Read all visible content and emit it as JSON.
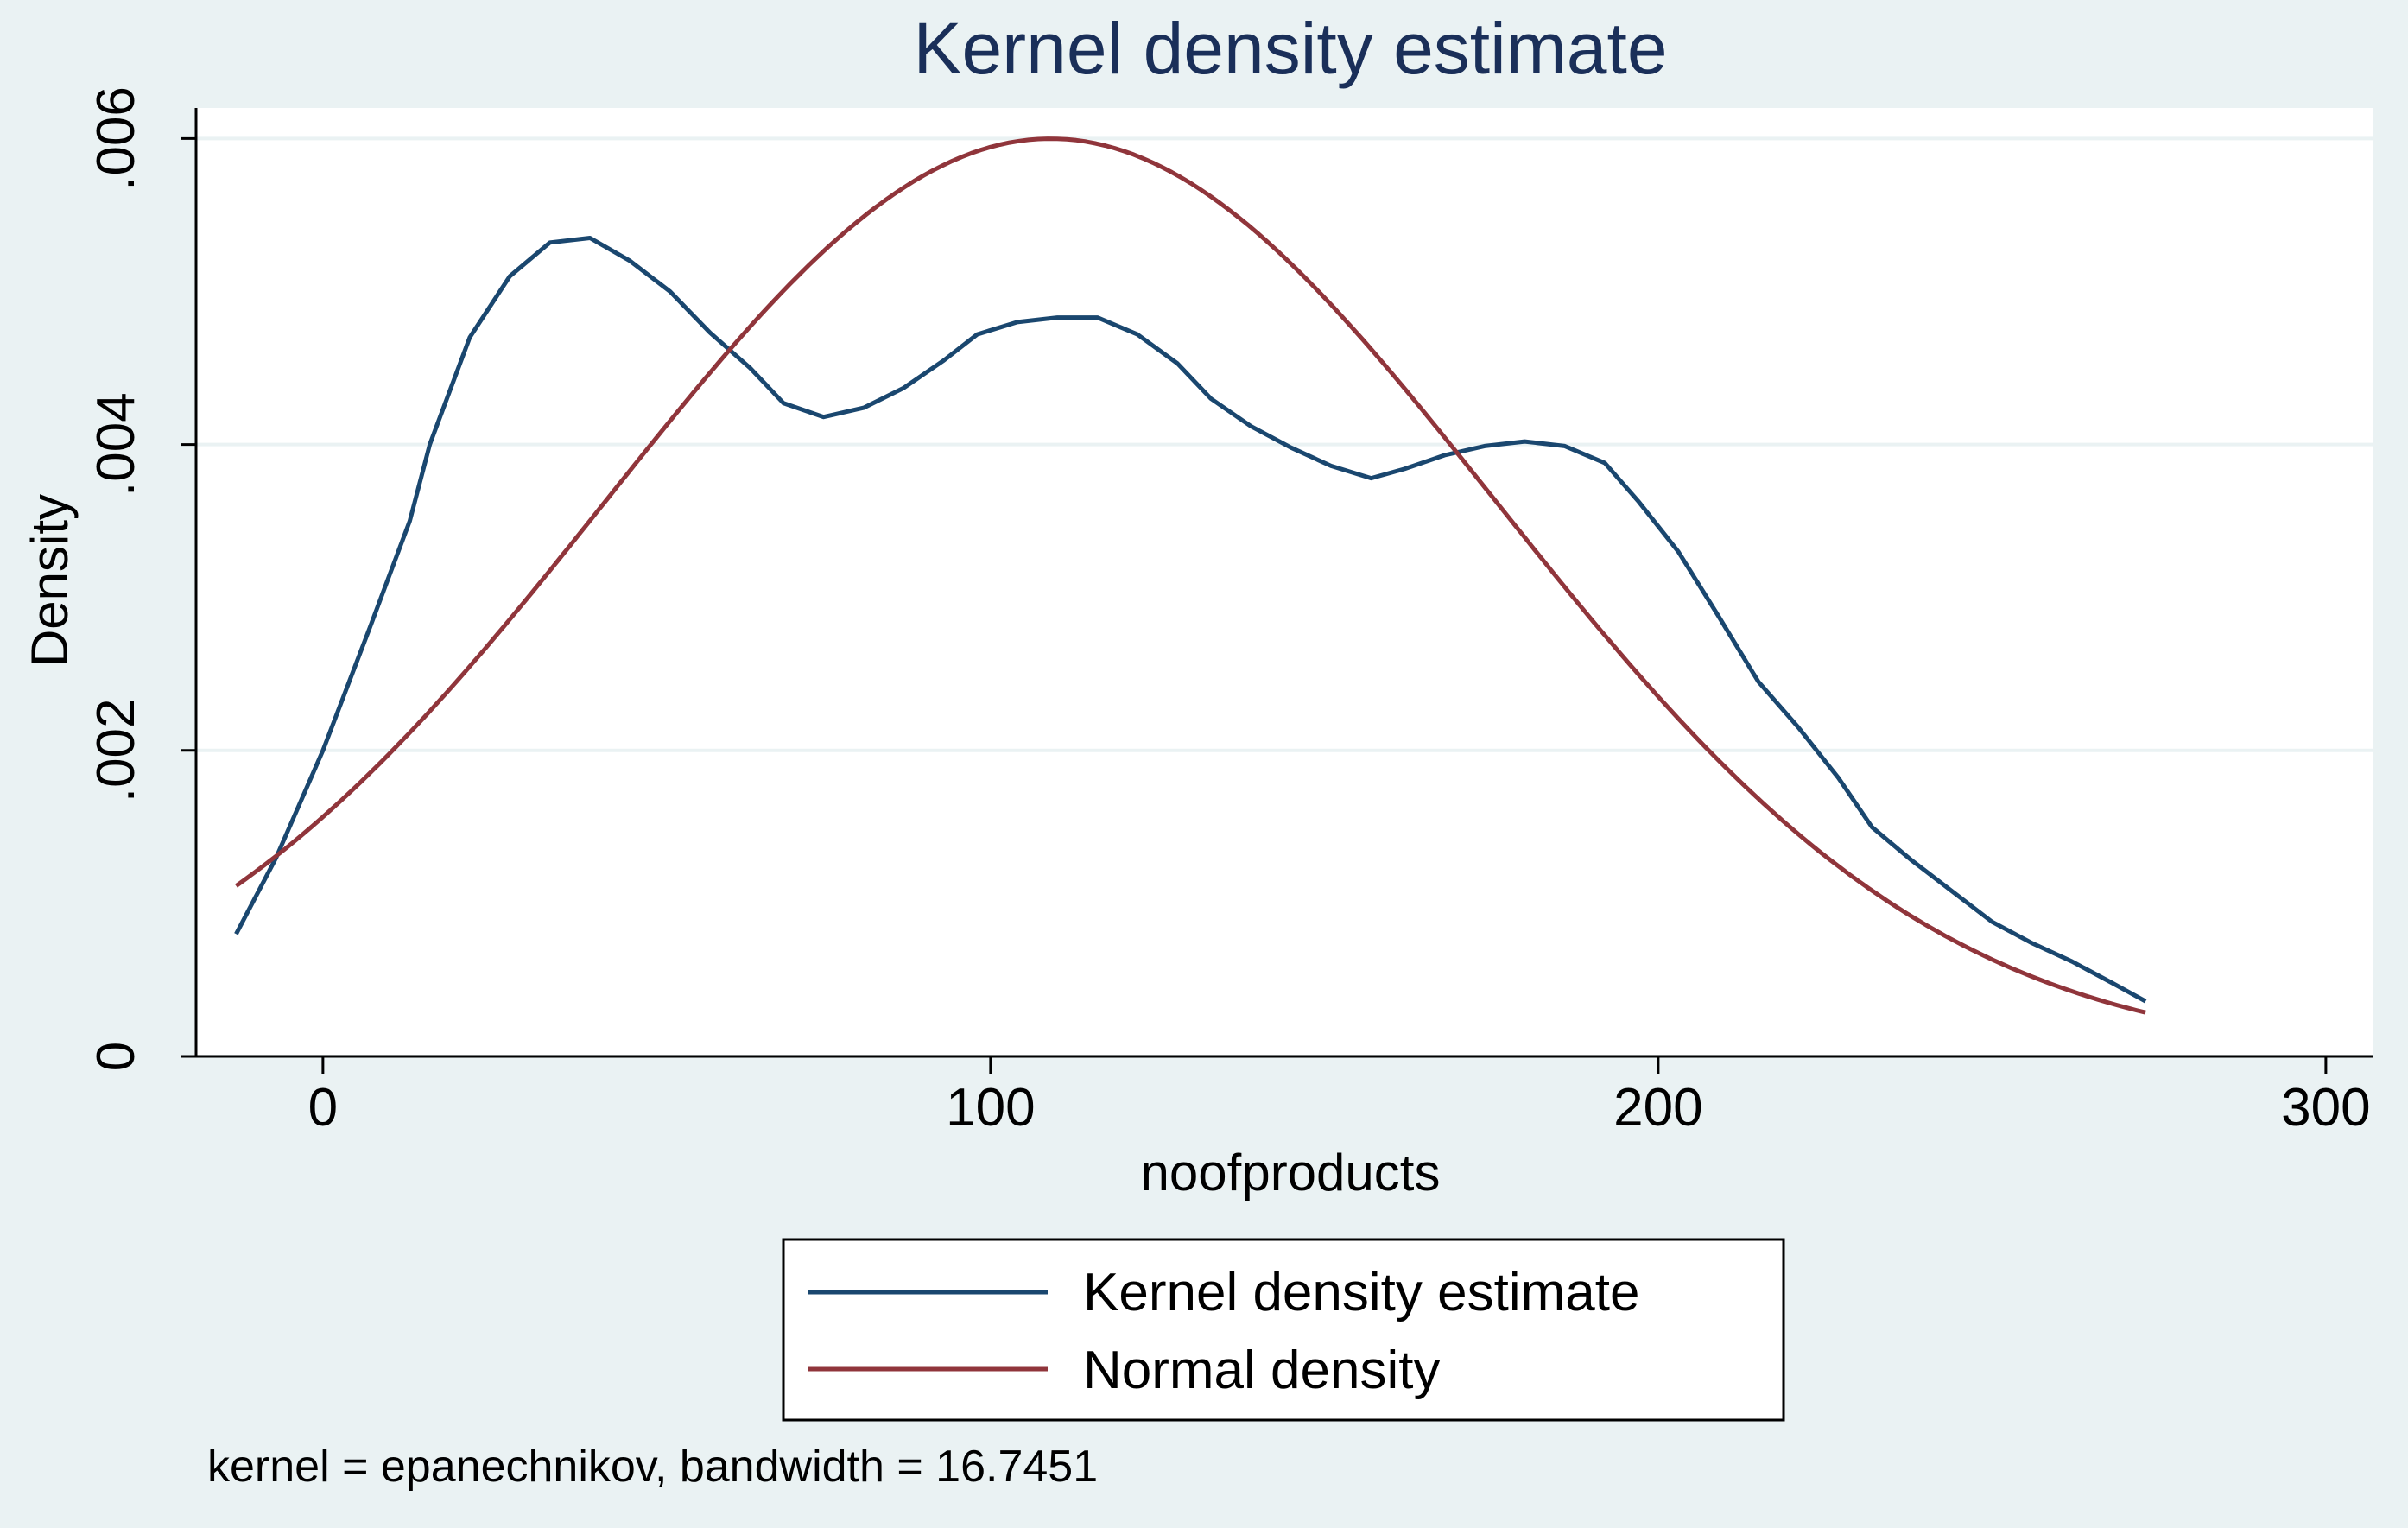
{
  "chart_data": {
    "type": "line",
    "title": "Kernel density estimate",
    "xlabel": "noofproducts",
    "ylabel": "Density",
    "xlim": [
      -19,
      307
    ],
    "ylim": [
      0,
      0.0062
    ],
    "x_ticks": [
      0,
      100,
      200,
      300
    ],
    "x_tick_labels": [
      "0",
      "100",
      "200",
      "300"
    ],
    "y_ticks": [
      0,
      0.002,
      0.004,
      0.006
    ],
    "y_tick_labels": [
      "0",
      ".002",
      ".004",
      ".006"
    ],
    "grid": true,
    "legend_position": "bottom",
    "note": "kernel = epanechnikov, bandwidth = 16.7451",
    "series": [
      {
        "name": "Kernel density estimate",
        "color": "#1a476f",
        "x": [
          -13,
          -7,
          0,
          7,
          13,
          16,
          22,
          28,
          34,
          40,
          46,
          52,
          58,
          64,
          69,
          75,
          81,
          87,
          93,
          98,
          104,
          110,
          116,
          122,
          128,
          133,
          139,
          145,
          151,
          157,
          162,
          168,
          174,
          180,
          186,
          192,
          197,
          203,
          209,
          215,
          221,
          227,
          232,
          238,
          244,
          250,
          256,
          262,
          268,
          273
        ],
        "y": [
          0.0008,
          0.0013,
          0.002,
          0.0028,
          0.0035,
          0.004,
          0.0047,
          0.0051,
          0.00532,
          0.00535,
          0.0052,
          0.005,
          0.00473,
          0.0045,
          0.00427,
          0.00418,
          0.00424,
          0.00437,
          0.00455,
          0.00472,
          0.0048,
          0.00483,
          0.00483,
          0.00472,
          0.00453,
          0.0043,
          0.00412,
          0.00398,
          0.00386,
          0.00378,
          0.00384,
          0.00393,
          0.00399,
          0.00402,
          0.00399,
          0.00388,
          0.00363,
          0.0033,
          0.00288,
          0.00245,
          0.00215,
          0.00182,
          0.0015,
          0.00128,
          0.00108,
          0.00088,
          0.00074,
          0.00062,
          0.00048,
          0.00036
        ]
      },
      {
        "name": "Normal density",
        "color": "#90353b",
        "mean": 109,
        "sd": 66.5
      }
    ]
  }
}
